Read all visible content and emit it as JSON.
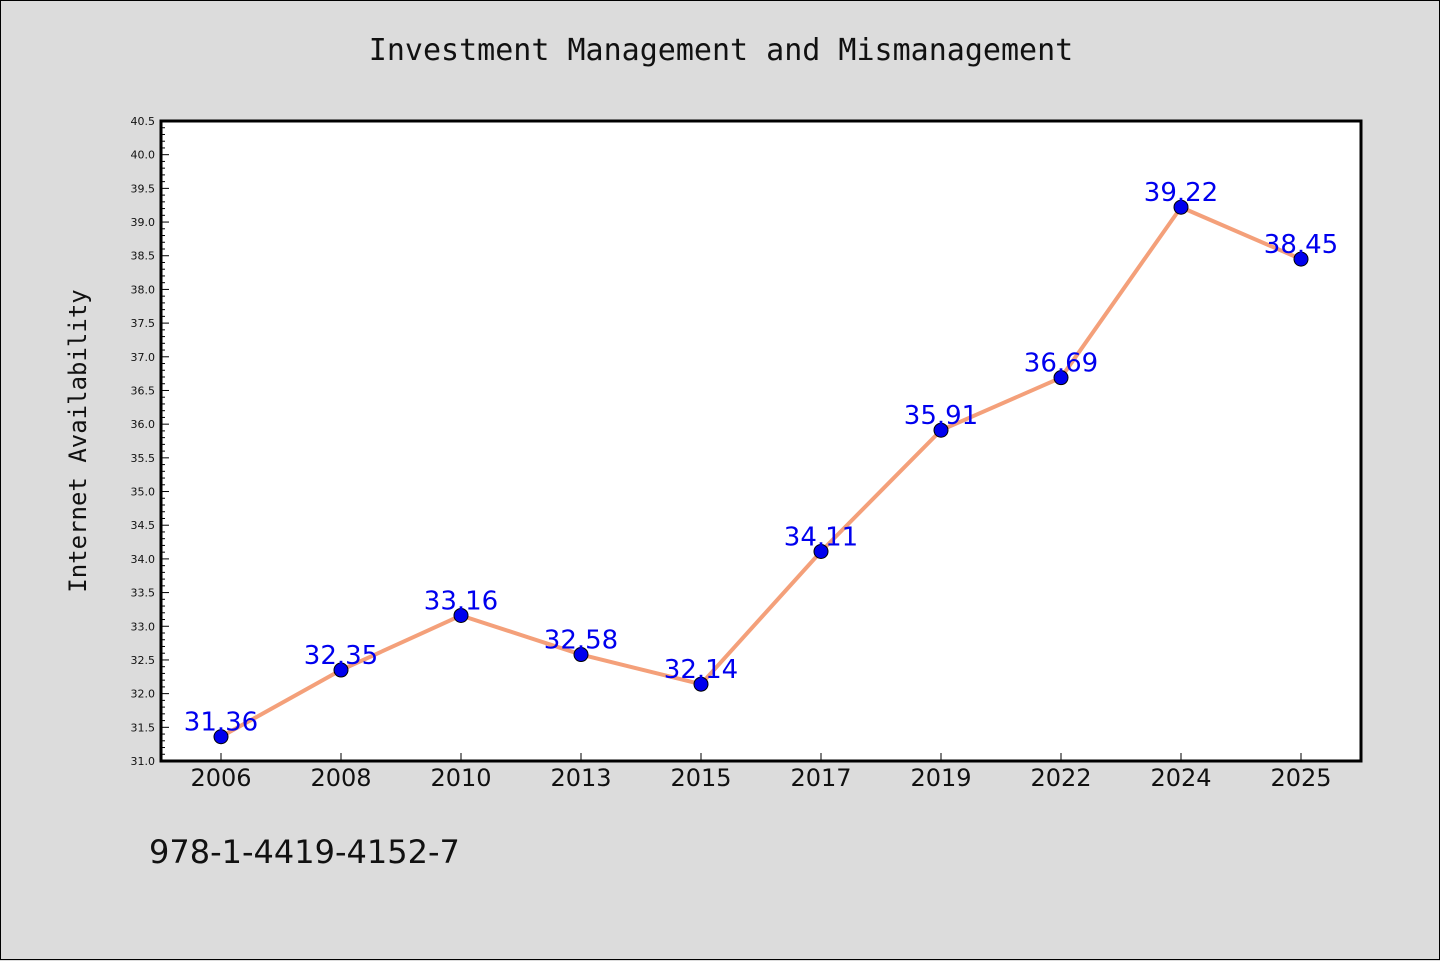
{
  "chart_data": {
    "type": "line",
    "title": "Investment Management and Mismanagement",
    "xlabel": "",
    "ylabel": "Internet Availability",
    "categories": [
      "2006",
      "2008",
      "2010",
      "2013",
      "2015",
      "2017",
      "2019",
      "2022",
      "2024",
      "2025"
    ],
    "values": [
      31.36,
      32.35,
      33.16,
      32.58,
      32.14,
      34.11,
      35.91,
      36.69,
      39.22,
      38.45
    ],
    "data_labels": [
      "31.36",
      "32.35",
      "33.16",
      "32.58",
      "32.14",
      "34.11",
      "35.91",
      "36.69",
      "39.22",
      "38.45"
    ],
    "ylim": [
      31.0,
      40.5
    ],
    "yticks": [
      "31.0",
      "31.5",
      "32.0",
      "32.5",
      "33.0",
      "33.5",
      "34.0",
      "34.5",
      "35.0",
      "35.5",
      "36.0",
      "36.5",
      "37.0",
      "37.5",
      "38.0",
      "38.5",
      "39.0",
      "39.5",
      "40.0",
      "40.5"
    ],
    "grid": false,
    "legend": "none",
    "line_color": "#f4a07a",
    "marker_color": "#0000ee",
    "label_color": "#0000ee",
    "background": "#dcdcdc",
    "plot_background": "#ffffff"
  },
  "footer": {
    "code": "978-1-4419-4152-7"
  }
}
